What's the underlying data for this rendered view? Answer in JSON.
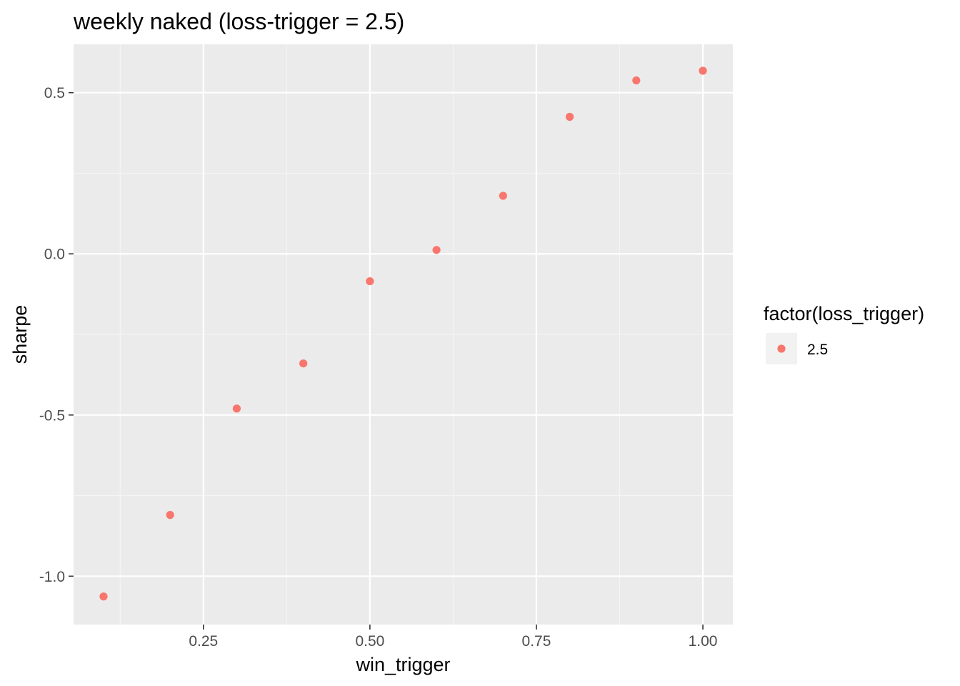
{
  "chart_data": {
    "type": "scatter",
    "title": "weekly naked (loss-trigger = 2.5)",
    "xlabel": "win_trigger",
    "ylabel": "sharpe",
    "xlim": [
      0.055,
      1.045
    ],
    "ylim": [
      -1.15,
      0.65
    ],
    "x_ticks": [
      {
        "value": 0.25,
        "label": "0.25"
      },
      {
        "value": 0.5,
        "label": "0.50"
      },
      {
        "value": 0.75,
        "label": "0.75"
      },
      {
        "value": 1.0,
        "label": "1.00"
      }
    ],
    "x_minor_ticks": [
      0.125,
      0.375,
      0.625,
      0.875
    ],
    "y_ticks": [
      {
        "value": 0.5,
        "label": "0.5"
      },
      {
        "value": 0.0,
        "label": "0.0"
      },
      {
        "value": -0.5,
        "label": "-0.5"
      },
      {
        "value": -1.0,
        "label": "-1.0"
      }
    ],
    "y_minor_ticks": [
      0.25,
      -0.25,
      -0.75
    ],
    "grid": true,
    "legend": {
      "title": "factor(loss_trigger)",
      "placement": "right",
      "entries": [
        {
          "label": "2.5",
          "color": "#f8766d"
        }
      ]
    },
    "series": [
      {
        "name": "2.5",
        "color": "#f8766d",
        "x": [
          0.1,
          0.2,
          0.3,
          0.4,
          0.5,
          0.6,
          0.7,
          0.8,
          0.9,
          1.0
        ],
        "y": [
          -1.063,
          -0.81,
          -0.48,
          -0.34,
          -0.085,
          0.012,
          0.18,
          0.425,
          0.538,
          0.568
        ]
      }
    ],
    "colors": {
      "panel_background": "#ebebeb",
      "grid_major": "#ffffff",
      "grid_minor": "#f5f5f5",
      "tick_text": "#4d4d4d",
      "tick_mark": "#333333",
      "legend_key_background": "#f2f2f2"
    }
  }
}
